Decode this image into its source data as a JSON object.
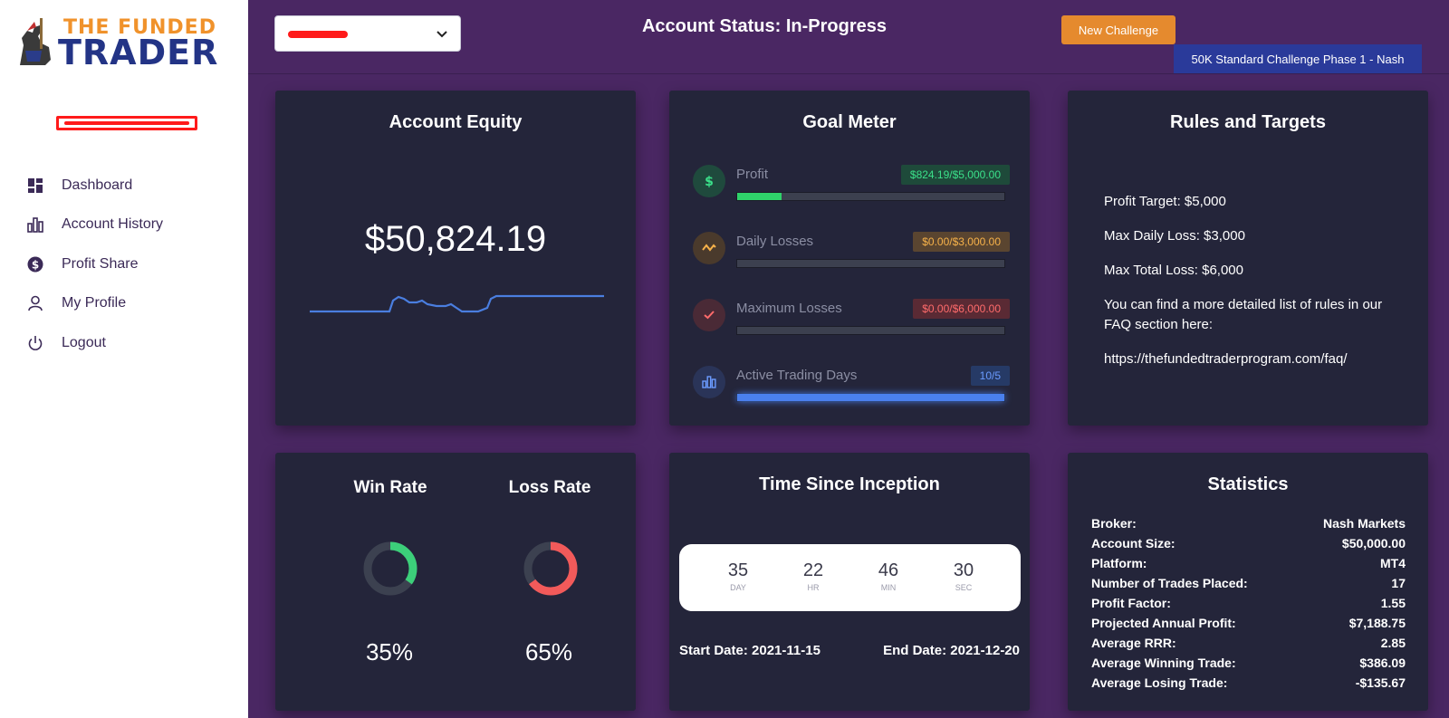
{
  "sidebar": {
    "logo": {
      "line1": "THE FUNDED",
      "line2": "TRADER"
    },
    "items": [
      {
        "label": "Dashboard",
        "icon": "dashboard-icon"
      },
      {
        "label": "Account History",
        "icon": "bar-chart-icon"
      },
      {
        "label": "Profit Share",
        "icon": "dollar-icon"
      },
      {
        "label": "My Profile",
        "icon": "user-icon"
      },
      {
        "label": "Logout",
        "icon": "power-icon"
      }
    ]
  },
  "header": {
    "status_title": "Account Status: In-Progress",
    "new_challenge_label": "New Challenge",
    "challenge_badge": "50K Standard Challenge Phase 1 - Nash"
  },
  "equity": {
    "title": "Account Equity",
    "value": "$50,824.19"
  },
  "goal_meter": {
    "title": "Goal Meter",
    "items": [
      {
        "label": "Profit",
        "badge": "$824.19/$5,000.00",
        "progress": 0.165,
        "color": "#2fd26a",
        "badge_bg": "#1e4a3a",
        "badge_fg": "#3be08a",
        "icon_bg": "#1f4a3d",
        "icon": "dollar-icon"
      },
      {
        "label": "Daily Losses",
        "badge": "$0.00/$3,000.00",
        "progress": 0,
        "color": "#f2a33a",
        "badge_bg": "#5a4530",
        "badge_fg": "#f7b24a",
        "icon_bg": "#4a3a2c",
        "icon": "wave-icon"
      },
      {
        "label": "Maximum Losses",
        "badge": "$0.00/$6,000.00",
        "progress": 0,
        "color": "#ff5a5a",
        "badge_bg": "#5a2a34",
        "badge_fg": "#ff6b6b",
        "icon_bg": "#4a2a36",
        "icon": "check-icon"
      },
      {
        "label": "Active Trading Days",
        "badge": "10/5",
        "progress": 1.0,
        "color": "#4a80ee",
        "badge_bg": "#263a66",
        "badge_fg": "#6b9bff",
        "icon_bg": "#2a3458",
        "icon": "bar-chart-icon"
      }
    ]
  },
  "rules": {
    "title": "Rules and Targets",
    "lines": [
      "Profit Target: $5,000",
      "Max Daily Loss: $3,000",
      "Max Total Loss: $6,000",
      "You can find a more detailed list of rules in our FAQ section here:",
      "https://thefundedtraderprogram.com/faq/"
    ]
  },
  "rates": {
    "win_title": "Win Rate",
    "loss_title": "Loss Rate",
    "win_value": "35%",
    "loss_value": "65%",
    "win_fraction": 0.35,
    "loss_fraction": 0.65,
    "win_color": "#3ccf7a",
    "loss_color": "#f25a5a",
    "track_color": "#3c4150"
  },
  "time_since": {
    "title": "Time Since Inception",
    "cells": [
      {
        "num": "35",
        "unit": "DAY"
      },
      {
        "num": "22",
        "unit": "HR"
      },
      {
        "num": "46",
        "unit": "MIN"
      },
      {
        "num": "30",
        "unit": "SEC"
      }
    ],
    "start_date": "Start Date: 2021-11-15",
    "end_date": "End Date: 2021-12-20"
  },
  "statistics": {
    "title": "Statistics",
    "rows": [
      {
        "label": "Broker:",
        "value": "Nash Markets"
      },
      {
        "label": "Account Size:",
        "value": "$50,000.00"
      },
      {
        "label": "Platform:",
        "value": "MT4"
      },
      {
        "label": "Number of Trades Placed:",
        "value": "17"
      },
      {
        "label": "Profit Factor:",
        "value": "1.55"
      },
      {
        "label": "Projected Annual Profit:",
        "value": "$7,188.75"
      },
      {
        "label": "Average RRR:",
        "value": "2.85"
      },
      {
        "label": "Average Winning Trade:",
        "value": "$386.09"
      },
      {
        "label": "Average Losing Trade:",
        "value": "-$135.67"
      }
    ]
  }
}
